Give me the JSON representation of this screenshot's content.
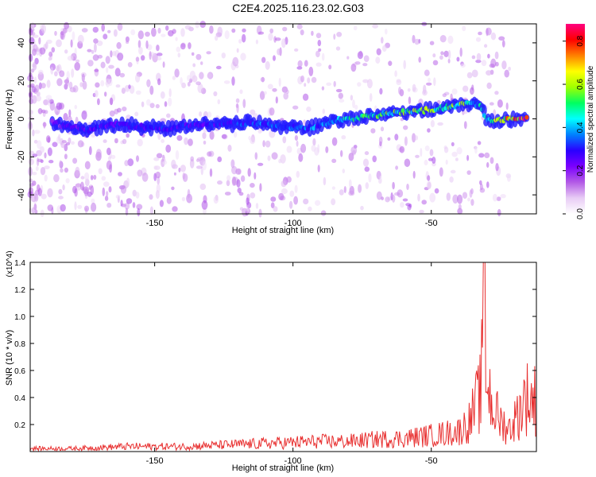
{
  "title": "C2E4.2025.116.23.02.G03",
  "chart_data": [
    {
      "type": "heatmap",
      "ylabel": "Frequency (Hz)",
      "xlabel": "Height of straight line (km)",
      "xlim": [
        -195,
        -12
      ],
      "ylim": [
        -50,
        50
      ],
      "xticks": [
        -150,
        -100,
        -50
      ],
      "yticks": [
        -40,
        -20,
        0,
        20,
        40
      ],
      "colorbar": {
        "label": "Normalized spectral amplitude",
        "range": [
          0,
          0.88
        ],
        "ticks": [
          "0.0",
          "0.2",
          "0.4",
          "0.6",
          "0.8"
        ],
        "colormap": [
          "#ffffff",
          "#e8ccf5",
          "#b35ae6",
          "#7b00ff",
          "#2a00ff",
          "#0080ff",
          "#00ffff",
          "#00ff60",
          "#a0ff00",
          "#ffff00",
          "#ff8000",
          "#ff0000",
          "#ff0080"
        ]
      },
      "ridge": {
        "x": [
          -187,
          -175,
          -165,
          -155,
          -145,
          -135,
          -125,
          -115,
          -105,
          -95,
          -85,
          -75,
          -65,
          -55,
          -45,
          -38,
          -32,
          -30,
          -25,
          -20,
          -15
        ],
        "frequency": [
          -2,
          -6,
          -3,
          -4,
          -5,
          -3,
          -3,
          -2,
          -4,
          -5,
          -1,
          1,
          3,
          4,
          6,
          8,
          7,
          -1,
          -1,
          0,
          1
        ],
        "amplitude": [
          0.2,
          0.3,
          0.3,
          0.3,
          0.3,
          0.3,
          0.3,
          0.35,
          0.4,
          0.35,
          0.45,
          0.5,
          0.55,
          0.6,
          0.6,
          0.55,
          0.45,
          0.5,
          0.7,
          0.8,
          0.88
        ]
      }
    },
    {
      "type": "line",
      "ylabel": "SNR (10 * v/v)",
      "xlabel": "Height of straight line (km)",
      "multiplier": "(x10^4)",
      "xlim": [
        -195,
        -12
      ],
      "ylim": [
        0,
        1.4
      ],
      "xticks": [
        -150,
        -100,
        -50
      ],
      "yticks": [
        "0.2",
        "0.4",
        "0.6",
        "0.8",
        "1.0",
        "1.2",
        "1.4"
      ],
      "color": "#e83030",
      "series": [
        {
          "x": [
            -195,
            -180,
            -170,
            -160,
            -150,
            -140,
            -130,
            -120,
            -110,
            -100,
            -90,
            -80,
            -70,
            -60,
            -50,
            -45,
            -40,
            -36,
            -34,
            -32,
            -31,
            -30,
            -28,
            -25,
            -22,
            -20,
            -18,
            -16,
            -14,
            -12
          ],
          "values": [
            0.03,
            0.03,
            0.04,
            0.05,
            0.05,
            0.05,
            0.06,
            0.07,
            0.08,
            0.09,
            0.1,
            0.1,
            0.12,
            0.13,
            0.16,
            0.18,
            0.2,
            0.3,
            0.45,
            0.6,
            1.4,
            0.75,
            0.45,
            0.3,
            0.22,
            0.3,
            0.4,
            0.55,
            0.5,
            0.52
          ]
        }
      ]
    }
  ]
}
